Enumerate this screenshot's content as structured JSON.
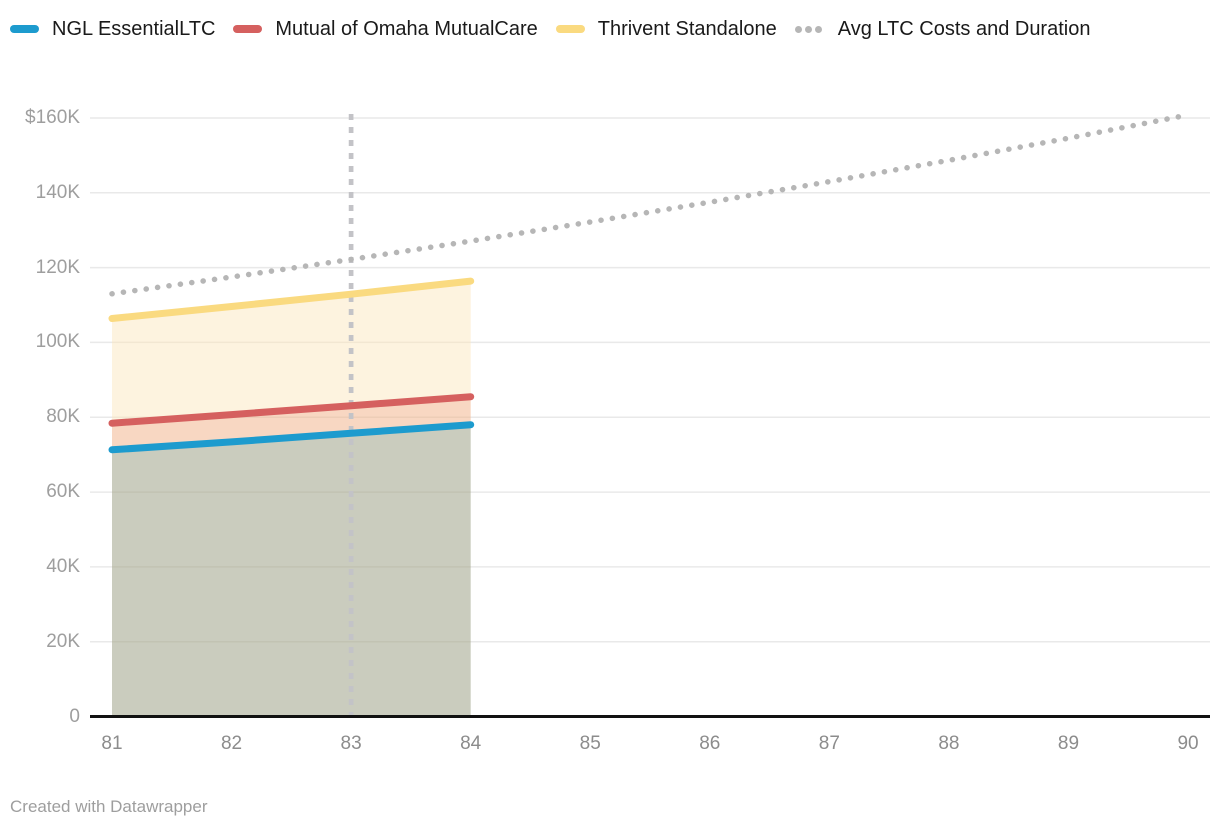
{
  "legend": {
    "items": [
      {
        "label": "NGL EssentialLTC",
        "color": "#1d9bce",
        "swatch": "line"
      },
      {
        "label": "Mutual of Omaha MutualCare",
        "color": "#d5605f",
        "swatch": "line"
      },
      {
        "label": "Thrivent Standalone",
        "color": "#fada80",
        "swatch": "line"
      },
      {
        "label": "Avg LTC Costs and Duration",
        "color": "#b6b6b6",
        "swatch": "dots"
      }
    ]
  },
  "chart_data": {
    "type": "line",
    "title": "",
    "xlabel": "",
    "ylabel": "",
    "xlim": [
      81,
      90
    ],
    "ylim": [
      0,
      160000
    ],
    "grid": true,
    "legend_position": "top",
    "x_axis": {
      "ticks": [
        {
          "label": "81",
          "value": 81
        },
        {
          "label": "82",
          "value": 82
        },
        {
          "label": "83",
          "value": 83
        },
        {
          "label": "84",
          "value": 84
        },
        {
          "label": "85",
          "value": 85
        },
        {
          "label": "86",
          "value": 86
        },
        {
          "label": "87",
          "value": 87
        },
        {
          "label": "88",
          "value": 88
        },
        {
          "label": "89",
          "value": 89
        },
        {
          "label": "90",
          "value": 90
        }
      ]
    },
    "y_axis": {
      "ticks": [
        {
          "label": "$160K",
          "value": 160000
        },
        {
          "label": "140K",
          "value": 140000
        },
        {
          "label": "120K",
          "value": 120000
        },
        {
          "label": "100K",
          "value": 100000
        },
        {
          "label": "80K",
          "value": 80000
        },
        {
          "label": "60K",
          "value": 60000
        },
        {
          "label": "40K",
          "value": 40000
        },
        {
          "label": "20K",
          "value": 20000
        },
        {
          "label": "0",
          "value": 0
        }
      ]
    },
    "series": [
      {
        "name": "NGL EssentialLTC",
        "style": "solid",
        "color": "#1d9bce",
        "x": [
          81,
          82,
          83,
          84
        ],
        "values": [
          71300,
          73400,
          75700,
          78000
        ]
      },
      {
        "name": "Mutual of Omaha MutualCare",
        "style": "solid",
        "color": "#d5605f",
        "x": [
          81,
          82,
          83,
          84
        ],
        "values": [
          78400,
          80700,
          83100,
          85500
        ]
      },
      {
        "name": "Thrivent Standalone",
        "style": "solid",
        "color": "#fada80",
        "x": [
          81,
          82,
          83,
          84
        ],
        "values": [
          106400,
          109600,
          112900,
          116400
        ]
      },
      {
        "name": "Avg LTC Costs and Duration",
        "style": "dotted",
        "color": "#b6b6b6",
        "x": [
          81,
          82,
          83,
          84,
          85,
          86,
          87,
          88,
          89,
          90
        ],
        "values": [
          113000,
          117500,
          122200,
          127100,
          132200,
          137500,
          143000,
          148700,
          154600,
          160800
        ]
      }
    ],
    "bands": [
      {
        "top": "Thrivent Standalone",
        "bottom": "Mutual of Omaha MutualCare",
        "color": "#fdf3df"
      },
      {
        "top": "Mutual of Omaha MutualCare",
        "bottom": "NGL EssentialLTC",
        "color": "#f8d7c2"
      },
      {
        "top": "NGL EssentialLTC",
        "bottom": null,
        "color": "#caccbe"
      }
    ],
    "vline": {
      "x": 83,
      "color": "#c3c3c7"
    },
    "grid_color": "#e9e9e9",
    "axis_color": "#111111"
  },
  "footer": {
    "credit": "Created with Datawrapper"
  }
}
